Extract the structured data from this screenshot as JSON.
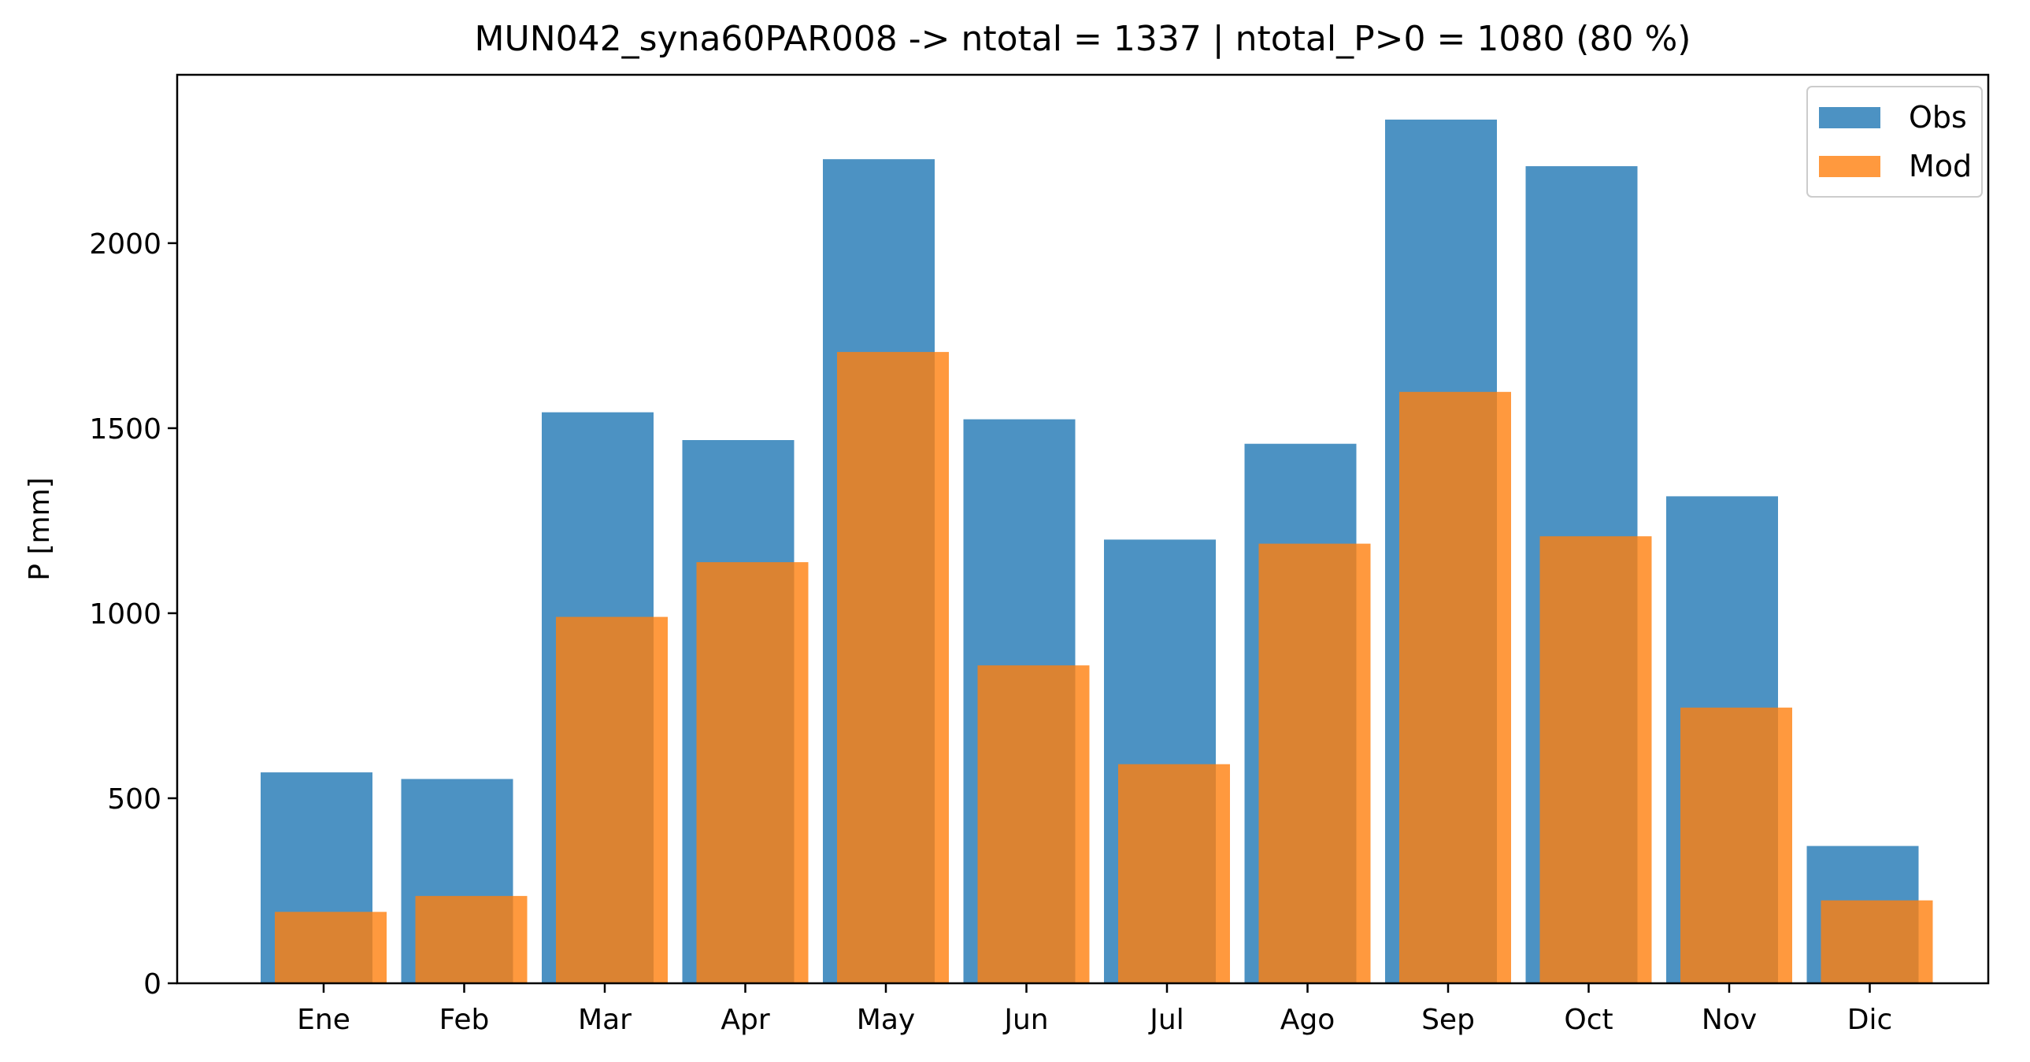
{
  "chart_data": {
    "type": "bar",
    "title": "MUN042_syna60PAR008 -> ntotal = 1337 | ntotal_P>0 = 1080 (80 %)",
    "xlabel": "",
    "ylabel": "P [mm]",
    "categories": [
      "Ene",
      "Feb",
      "Mar",
      "Apr",
      "May",
      "Jun",
      "Jul",
      "Ago",
      "Sep",
      "Oct",
      "Nov",
      "Dic"
    ],
    "series": [
      {
        "name": "Obs",
        "color": "#1f77b4",
        "opacity": 0.8,
        "values": [
          570,
          552,
          1543,
          1468,
          2227,
          1524,
          1199,
          1458,
          2334,
          2208,
          1316,
          371
        ]
      },
      {
        "name": "Mod",
        "color": "#ff7f0e",
        "opacity": 0.8,
        "values": [
          193,
          236,
          990,
          1138,
          1706,
          859,
          592,
          1188,
          1598,
          1208,
          745,
          224
        ]
      }
    ],
    "yticks": [
      0,
      500,
      1000,
      1500,
      2000
    ],
    "ylim": [
      0,
      2455
    ],
    "grid": false,
    "legend": "top-right"
  }
}
